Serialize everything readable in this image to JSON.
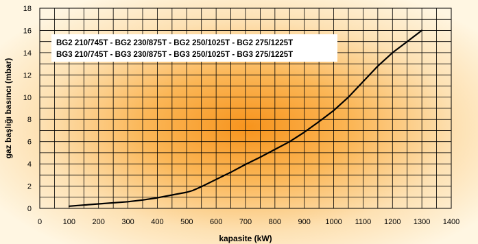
{
  "chart_data": {
    "type": "line",
    "title": "",
    "xlabel": "kapasite (kW)",
    "ylabel": "gaz başlığı basıncı (mbar)",
    "xlim": [
      0,
      1400
    ],
    "ylim": [
      0,
      18
    ],
    "x_ticks": [
      0,
      100,
      200,
      300,
      400,
      500,
      600,
      700,
      800,
      900,
      1000,
      1100,
      1200,
      1300,
      1400
    ],
    "y_ticks": [
      0,
      2,
      4,
      6,
      8,
      10,
      12,
      14,
      16,
      18
    ],
    "grid": true,
    "annotation_lines": [
      "BG2 210/745T - BG2 230/875T - BG2 250/1025T - BG2 275/1225T",
      "BG3 210/745T - BG3 230/875T - BG3 250/1025T - BG3 275/1225T"
    ],
    "series": [
      {
        "x": [
          100,
          200,
          300,
          350,
          400,
          450,
          500,
          520,
          550,
          600,
          650,
          700,
          750,
          800,
          850,
          900,
          950,
          1000,
          1050,
          1100,
          1150,
          1200,
          1250,
          1300
        ],
        "y": [
          0.2,
          0.4,
          0.6,
          0.75,
          0.95,
          1.2,
          1.45,
          1.6,
          1.95,
          2.6,
          3.25,
          3.95,
          4.6,
          5.3,
          6.0,
          6.85,
          7.8,
          8.8,
          10.0,
          11.4,
          12.8,
          14.0,
          15.0,
          16.0
        ]
      }
    ],
    "colors": {
      "curve": "#000000",
      "grid": "#000000",
      "background_center": "#f7941d",
      "background_mid": "#fbd08a",
      "background_edge": "#fff4d8"
    }
  }
}
